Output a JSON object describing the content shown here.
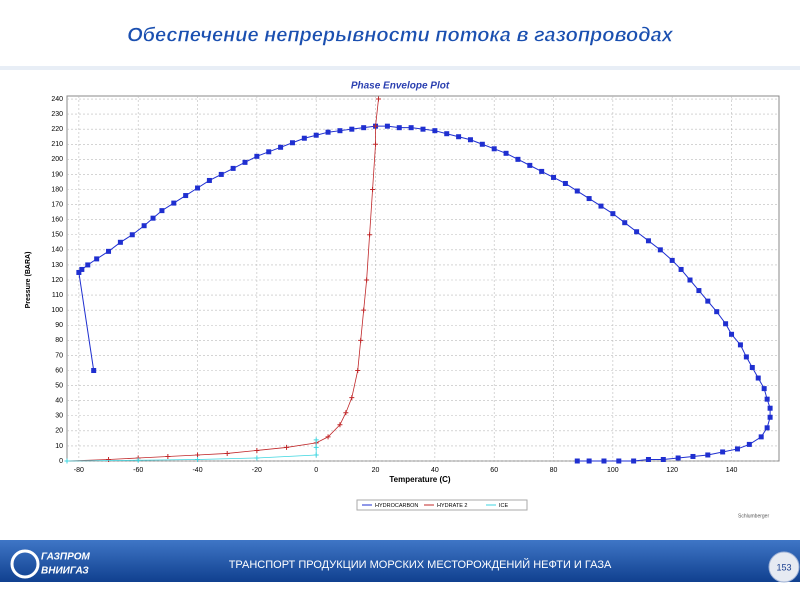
{
  "slide": {
    "title": "Обеспечение непрерывности потока в газопроводах",
    "footer": "ТРАНСПОРТ  ПРОДУКЦИИ МОРСКИХ МЕСТОРОЖДЕНИЙ  НЕФТИ И ГАЗА",
    "page": "153",
    "logo_top": "ГАЗПРОМ",
    "logo_bottom": "ВНИИГАЗ",
    "credit": "Schlumberger"
  },
  "chart_data": {
    "type": "line",
    "title": "Phase Envelope Plot",
    "x_label": "Temperature (C)",
    "y_label": "Pressure (BARA)",
    "xlim": [
      -84,
      156
    ],
    "ylim": [
      0,
      242
    ],
    "xticks": [
      -80,
      -60,
      -40,
      -20,
      0,
      20,
      40,
      60,
      80,
      100,
      120,
      140
    ],
    "yticks": [
      0,
      10,
      20,
      30,
      40,
      50,
      60,
      70,
      80,
      90,
      100,
      110,
      120,
      130,
      140,
      150,
      160,
      170,
      180,
      190,
      200,
      210,
      220,
      230,
      240
    ],
    "grid": true,
    "legend": "bottom",
    "series": [
      {
        "name": "HYDROCARBON",
        "color": "#1f2fd0",
        "marker": "square",
        "x": [
          -75,
          -80,
          -79,
          -77,
          -74,
          -70,
          -66,
          -62,
          -58,
          -55,
          -52,
          -48,
          -44,
          -40,
          -36,
          -32,
          -28,
          -24,
          -20,
          -16,
          -12,
          -8,
          -4,
          0,
          4,
          8,
          12,
          16,
          20,
          24,
          28,
          32,
          36,
          40,
          44,
          48,
          52,
          56,
          60,
          64,
          68,
          72,
          76,
          80,
          84,
          88,
          92,
          96,
          100,
          104,
          108,
          112,
          116,
          120,
          123,
          126,
          129,
          132,
          135,
          138,
          140,
          143,
          145,
          147,
          149,
          151,
          152,
          153,
          153,
          152,
          150,
          146,
          142,
          137,
          132,
          127,
          122,
          117,
          112,
          107,
          102,
          97,
          92,
          88
        ],
        "values": [
          60,
          125,
          127,
          130,
          134,
          139,
          145,
          150,
          156,
          161,
          166,
          171,
          176,
          181,
          186,
          190,
          194,
          198,
          202,
          205,
          208,
          211,
          214,
          216,
          218,
          219,
          220,
          221,
          222,
          222,
          221,
          221,
          220,
          219,
          217,
          215,
          213,
          210,
          207,
          204,
          200,
          196,
          192,
          188,
          184,
          179,
          174,
          169,
          164,
          158,
          152,
          146,
          140,
          133,
          127,
          120,
          113,
          106,
          99,
          91,
          84,
          77,
          69,
          62,
          55,
          48,
          41,
          35,
          29,
          22,
          16,
          11,
          8,
          6,
          4,
          3,
          2,
          1,
          1,
          0,
          0,
          0,
          0,
          0
        ]
      },
      {
        "name": "HYDRATE 2",
        "color": "#c0282a",
        "marker": "plus",
        "x": [
          -84,
          -70,
          -60,
          -50,
          -40,
          -30,
          -20,
          -10,
          0,
          4,
          8,
          10,
          12,
          14,
          15,
          16,
          17,
          18,
          19,
          20,
          20,
          21
        ],
        "values": [
          0,
          1,
          2,
          3,
          4,
          5,
          7,
          9,
          12,
          16,
          24,
          32,
          42,
          60,
          80,
          100,
          120,
          150,
          180,
          210,
          222,
          240
        ]
      },
      {
        "name": "ICE",
        "color": "#3fd6e0",
        "marker": "plus",
        "x": [
          -84,
          -60,
          -40,
          -20,
          0,
          0,
          0
        ],
        "values": [
          0,
          0.5,
          1,
          2,
          4,
          9,
          14
        ]
      }
    ]
  }
}
